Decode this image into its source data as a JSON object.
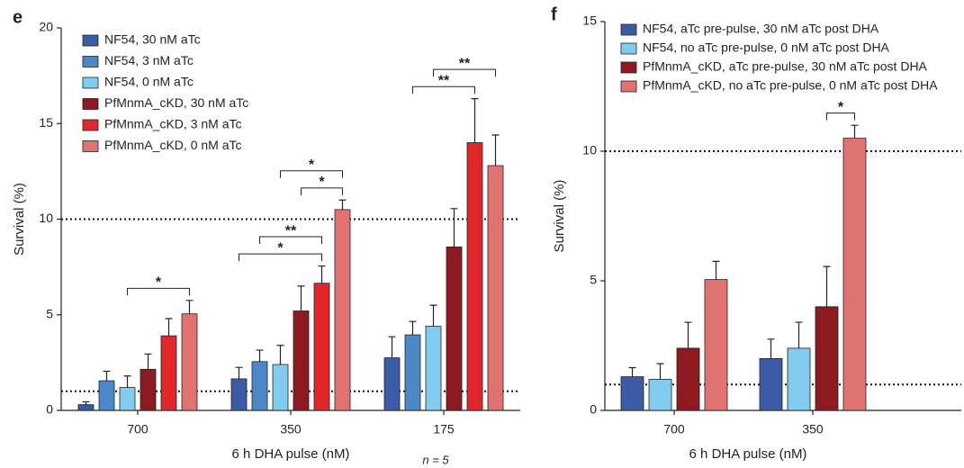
{
  "chart_data": [
    {
      "type": "bar",
      "panel": "e",
      "ylabel": "Survival (%)",
      "xlabel": "6 h DHA pulse (nM)",
      "note": "n = 5",
      "categories": [
        "700",
        "350",
        "175"
      ],
      "ylim": [
        0,
        20
      ],
      "yticks": [
        0,
        5,
        10,
        15,
        20
      ],
      "reference_lines": [
        10,
        1
      ],
      "series": [
        {
          "name": "NF54, 30 nM aTc",
          "color": "#3c5ba6",
          "values": [
            0.3,
            1.65,
            2.75
          ],
          "errors": [
            0.15,
            0.6,
            1.1
          ]
        },
        {
          "name": "NF54, 3 nM aTc",
          "color": "#4c87c7",
          "values": [
            1.55,
            2.55,
            3.95
          ],
          "errors": [
            0.5,
            0.6,
            0.7
          ]
        },
        {
          "name": "NF54, 0 nM aTc",
          "color": "#80cbee",
          "values": [
            1.2,
            2.4,
            4.4
          ],
          "errors": [
            0.6,
            1.0,
            1.1
          ]
        },
        {
          "name": "PfMnmA_cKD, 30 nM aTc",
          "color": "#8c1a20",
          "values": [
            2.15,
            5.2,
            8.55
          ],
          "errors": [
            0.8,
            1.3,
            2.0
          ]
        },
        {
          "name": "PfMnmA_cKD, 3 nM aTc",
          "color": "#e0282c",
          "values": [
            3.9,
            6.65,
            14.0
          ],
          "errors": [
            0.9,
            0.9,
            2.3
          ]
        },
        {
          "name": "PfMnmA_cKD, 0 nM aTc",
          "color": "#e07272",
          "values": [
            5.05,
            10.5,
            12.8
          ],
          "errors": [
            0.7,
            0.5,
            1.6
          ]
        }
      ],
      "significance": [
        {
          "category": "700",
          "from": "NF54, 0 nM aTc",
          "to": "PfMnmA_cKD, 0 nM aTc",
          "label": "*"
        },
        {
          "category": "350",
          "from": "NF54, 30 nM aTc",
          "to": "PfMnmA_cKD, 3 nM aTc",
          "label": "*"
        },
        {
          "category": "350",
          "from": "NF54, 3 nM aTc",
          "to": "PfMnmA_cKD, 3 nM aTc",
          "label": "**"
        },
        {
          "category": "350",
          "from": "PfMnmA_cKD, 30 nM aTc",
          "to": "PfMnmA_cKD, 0 nM aTc",
          "label": "*"
        },
        {
          "category": "350",
          "from": "NF54, 0 nM aTc",
          "to": "PfMnmA_cKD, 0 nM aTc",
          "label": "*"
        },
        {
          "category": "175",
          "from": "NF54, 3 nM aTc",
          "to": "PfMnmA_cKD, 3 nM aTc",
          "label": "**"
        },
        {
          "category": "175",
          "from": "NF54, 0 nM aTc",
          "to": "PfMnmA_cKD, 0 nM aTc",
          "label": "**"
        }
      ]
    },
    {
      "type": "bar",
      "panel": "f",
      "ylabel": "Survival (%)",
      "xlabel": "6 h DHA pulse (nM)",
      "categories": [
        "700",
        "350"
      ],
      "ylim": [
        0,
        15
      ],
      "yticks": [
        0,
        5,
        10,
        15
      ],
      "reference_lines": [
        10,
        1
      ],
      "series": [
        {
          "name": "NF54, aTc pre-pulse, 30 nM aTc post DHA",
          "color": "#3c5ba6",
          "values": [
            1.3,
            2.0
          ],
          "errors": [
            0.35,
            0.75
          ]
        },
        {
          "name": "NF54, no aTc pre-pulse, 0 nM aTc post DHA",
          "color": "#80cbee",
          "values": [
            1.2,
            2.4
          ],
          "errors": [
            0.6,
            1.0
          ]
        },
        {
          "name": "PfMnmA_cKD, aTc pre-pulse, 30 nM aTc post DHA",
          "color": "#8c1a20",
          "values": [
            2.4,
            4.0
          ],
          "errors": [
            1.0,
            1.55
          ]
        },
        {
          "name": "PfMnmA_cKD, no aTc pre-pulse, 0 nM aTc post DHA",
          "color": "#e07272",
          "values": [
            5.05,
            10.5
          ],
          "errors": [
            0.7,
            0.5
          ]
        }
      ],
      "significance": [
        {
          "category": "350",
          "from": "PfMnmA_cKD, aTc pre-pulse, 30 nM aTc post DHA",
          "to": "PfMnmA_cKD, no aTc pre-pulse, 0 nM aTc post DHA",
          "label": "*"
        }
      ]
    }
  ]
}
